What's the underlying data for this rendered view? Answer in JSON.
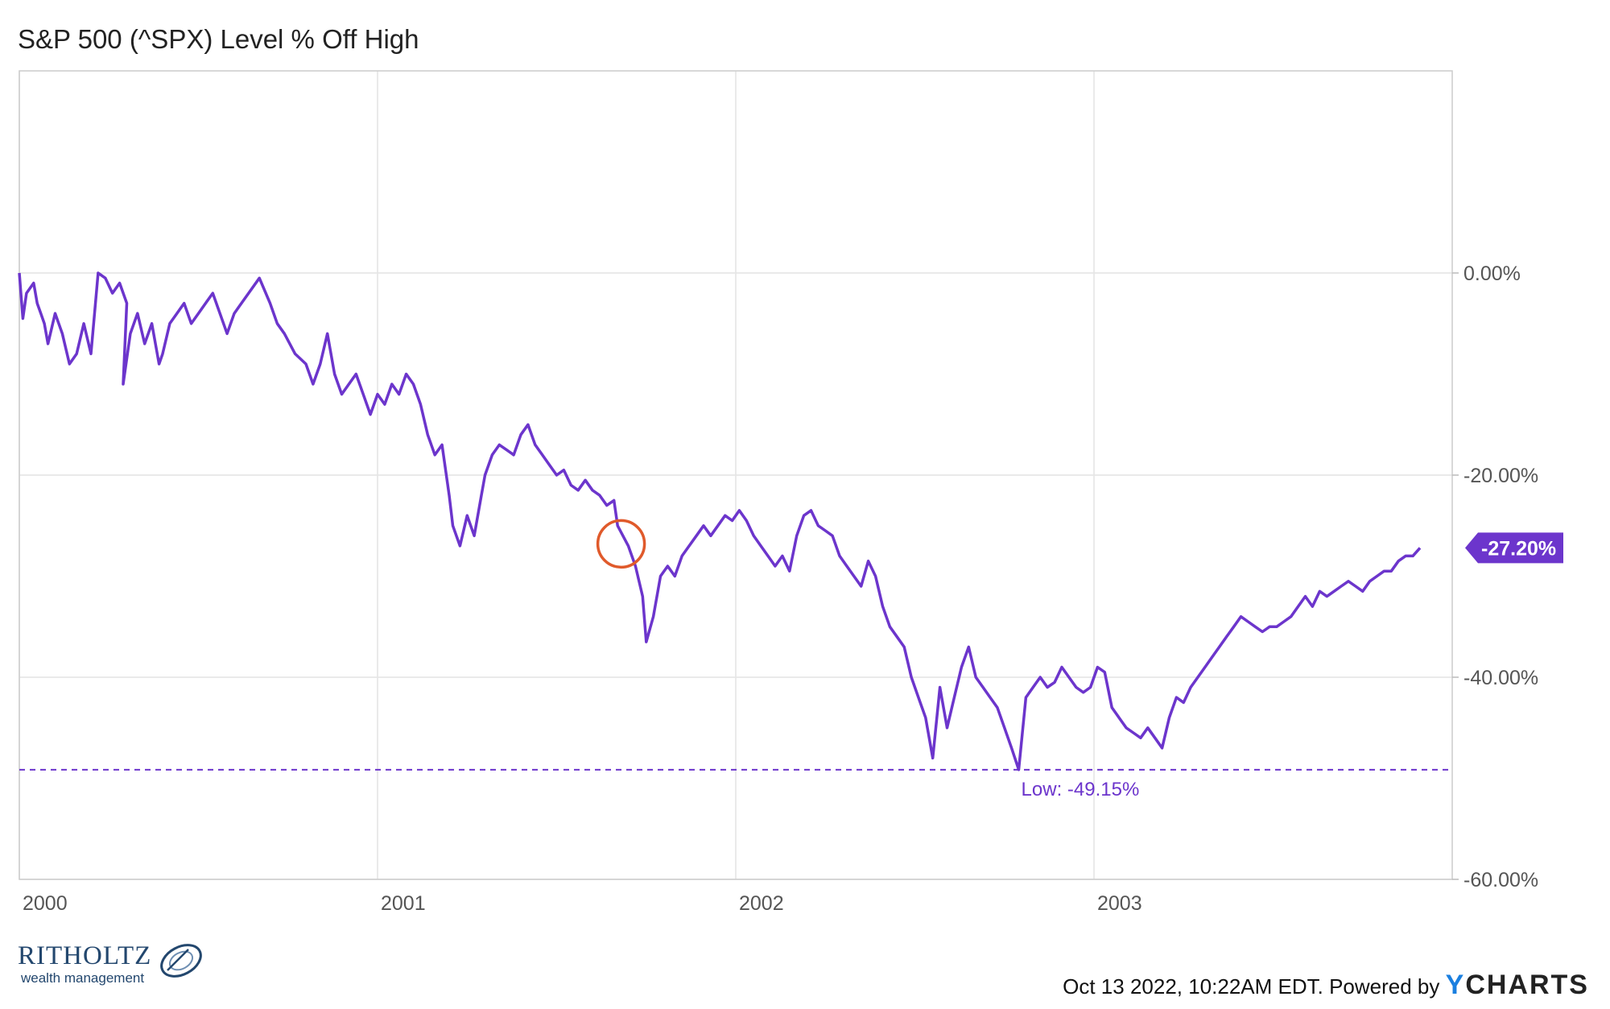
{
  "title": "S&P 500 (^SPX) Level % Off High",
  "footer": {
    "timestamp": "Oct 13 2022, 10:22AM EDT.",
    "powered_by": "Powered by",
    "brand_y": "Y",
    "brand_rest": "CHARTS"
  },
  "logo": {
    "name": "RITHOLTZ",
    "sub": "wealth management"
  },
  "colors": {
    "line": "#6c35cc",
    "marker": "#e05a2b",
    "grid": "#e4e4e4",
    "axis_text": "#555555",
    "badge_text": "#ffffff"
  },
  "chart_data": {
    "type": "line",
    "title": "S&P 500 (^SPX) Level % Off High",
    "xlabel": "",
    "ylabel": "",
    "x_range": [
      2000.0,
      2004.0
    ],
    "ylim": [
      -60,
      20
    ],
    "grid": true,
    "x_ticks": [
      {
        "value": 2000.0,
        "label": "2000"
      },
      {
        "value": 2001.0,
        "label": "2001"
      },
      {
        "value": 2002.0,
        "label": "2002"
      },
      {
        "value": 2003.0,
        "label": "2003"
      }
    ],
    "y_ticks": [
      {
        "value": 0,
        "label": "0.00%"
      },
      {
        "value": -20,
        "label": "-20.00%"
      },
      {
        "value": -40,
        "label": "-40.00%"
      },
      {
        "value": -60,
        "label": "-60.00%"
      }
    ],
    "series": [
      {
        "points": [
          [
            2000.0,
            0
          ],
          [
            2000.01,
            -4.5
          ],
          [
            2000.02,
            -2
          ],
          [
            2000.04,
            -1
          ],
          [
            2000.05,
            -3
          ],
          [
            2000.06,
            -4
          ],
          [
            2000.07,
            -5
          ],
          [
            2000.08,
            -7
          ],
          [
            2000.1,
            -4
          ],
          [
            2000.12,
            -6
          ],
          [
            2000.14,
            -9
          ],
          [
            2000.16,
            -8
          ],
          [
            2000.18,
            -5
          ],
          [
            2000.2,
            -8
          ],
          [
            2000.22,
            0
          ],
          [
            2000.24,
            -0.5
          ],
          [
            2000.26,
            -2
          ],
          [
            2000.28,
            -1
          ],
          [
            2000.3,
            -3
          ],
          [
            2000.29,
            -11
          ],
          [
            2000.31,
            -6
          ],
          [
            2000.33,
            -4
          ],
          [
            2000.35,
            -7
          ],
          [
            2000.37,
            -5
          ],
          [
            2000.39,
            -9
          ],
          [
            2000.4,
            -8
          ],
          [
            2000.42,
            -5
          ],
          [
            2000.44,
            -4
          ],
          [
            2000.46,
            -3
          ],
          [
            2000.48,
            -5
          ],
          [
            2000.5,
            -4
          ],
          [
            2000.52,
            -3
          ],
          [
            2000.54,
            -2
          ],
          [
            2000.56,
            -4
          ],
          [
            2000.58,
            -6
          ],
          [
            2000.6,
            -4
          ],
          [
            2000.62,
            -3
          ],
          [
            2000.64,
            -2
          ],
          [
            2000.67,
            -0.5
          ],
          [
            2000.7,
            -3
          ],
          [
            2000.72,
            -5
          ],
          [
            2000.74,
            -6
          ],
          [
            2000.77,
            -8
          ],
          [
            2000.8,
            -9
          ],
          [
            2000.82,
            -11
          ],
          [
            2000.84,
            -9
          ],
          [
            2000.86,
            -6
          ],
          [
            2000.88,
            -10
          ],
          [
            2000.9,
            -12
          ],
          [
            2000.92,
            -11
          ],
          [
            2000.94,
            -10
          ],
          [
            2000.96,
            -12
          ],
          [
            2000.98,
            -14
          ],
          [
            2001.0,
            -12
          ],
          [
            2001.02,
            -13
          ],
          [
            2001.04,
            -11
          ],
          [
            2001.06,
            -12
          ],
          [
            2001.08,
            -10
          ],
          [
            2001.1,
            -11
          ],
          [
            2001.12,
            -13
          ],
          [
            2001.14,
            -16
          ],
          [
            2001.16,
            -18
          ],
          [
            2001.18,
            -17
          ],
          [
            2001.2,
            -22
          ],
          [
            2001.21,
            -25
          ],
          [
            2001.23,
            -27
          ],
          [
            2001.25,
            -24
          ],
          [
            2001.27,
            -26
          ],
          [
            2001.29,
            -22
          ],
          [
            2001.3,
            -20
          ],
          [
            2001.32,
            -18
          ],
          [
            2001.34,
            -17
          ],
          [
            2001.36,
            -17.5
          ],
          [
            2001.38,
            -18
          ],
          [
            2001.4,
            -16
          ],
          [
            2001.42,
            -15
          ],
          [
            2001.44,
            -17
          ],
          [
            2001.46,
            -18
          ],
          [
            2001.48,
            -19
          ],
          [
            2001.5,
            -20
          ],
          [
            2001.52,
            -19.5
          ],
          [
            2001.54,
            -21
          ],
          [
            2001.56,
            -21.5
          ],
          [
            2001.58,
            -20.5
          ],
          [
            2001.6,
            -21.5
          ],
          [
            2001.62,
            -22
          ],
          [
            2001.64,
            -23
          ],
          [
            2001.66,
            -22.5
          ],
          [
            2001.67,
            -25
          ],
          [
            2001.7,
            -27
          ],
          [
            2001.72,
            -29
          ],
          [
            2001.74,
            -32
          ],
          [
            2001.75,
            -36.5
          ],
          [
            2001.77,
            -34
          ],
          [
            2001.79,
            -30
          ],
          [
            2001.81,
            -29
          ],
          [
            2001.83,
            -30
          ],
          [
            2001.85,
            -28
          ],
          [
            2001.87,
            -27
          ],
          [
            2001.89,
            -26
          ],
          [
            2001.91,
            -25
          ],
          [
            2001.93,
            -26
          ],
          [
            2001.95,
            -25
          ],
          [
            2001.97,
            -24
          ],
          [
            2001.99,
            -24.5
          ],
          [
            2002.01,
            -23.5
          ],
          [
            2002.03,
            -24.5
          ],
          [
            2002.05,
            -26
          ],
          [
            2002.07,
            -27
          ],
          [
            2002.09,
            -28
          ],
          [
            2002.11,
            -29
          ],
          [
            2002.13,
            -28
          ],
          [
            2002.15,
            -29.5
          ],
          [
            2002.17,
            -26
          ],
          [
            2002.19,
            -24
          ],
          [
            2002.21,
            -23.5
          ],
          [
            2002.23,
            -25
          ],
          [
            2002.25,
            -25.5
          ],
          [
            2002.27,
            -26
          ],
          [
            2002.29,
            -28
          ],
          [
            2002.31,
            -29
          ],
          [
            2002.33,
            -30
          ],
          [
            2002.35,
            -31
          ],
          [
            2002.37,
            -28.5
          ],
          [
            2002.39,
            -30
          ],
          [
            2002.41,
            -33
          ],
          [
            2002.43,
            -35
          ],
          [
            2002.45,
            -36
          ],
          [
            2002.47,
            -37
          ],
          [
            2002.49,
            -40
          ],
          [
            2002.51,
            -42
          ],
          [
            2002.53,
            -44
          ],
          [
            2002.55,
            -48
          ],
          [
            2002.57,
            -41
          ],
          [
            2002.59,
            -45
          ],
          [
            2002.61,
            -42
          ],
          [
            2002.63,
            -39
          ],
          [
            2002.65,
            -37
          ],
          [
            2002.67,
            -40
          ],
          [
            2002.69,
            -41
          ],
          [
            2002.71,
            -42
          ],
          [
            2002.73,
            -43
          ],
          [
            2002.75,
            -45
          ],
          [
            2002.77,
            -47
          ],
          [
            2002.79,
            -49.15
          ],
          [
            2002.81,
            -42
          ],
          [
            2002.83,
            -41
          ],
          [
            2002.85,
            -40
          ],
          [
            2002.87,
            -41
          ],
          [
            2002.89,
            -40.5
          ],
          [
            2002.91,
            -39
          ],
          [
            2002.93,
            -40
          ],
          [
            2002.95,
            -41
          ],
          [
            2002.97,
            -41.5
          ],
          [
            2002.99,
            -41
          ],
          [
            2003.01,
            -39
          ],
          [
            2003.03,
            -39.5
          ],
          [
            2003.05,
            -43
          ],
          [
            2003.07,
            -44
          ],
          [
            2003.09,
            -45
          ],
          [
            2003.11,
            -45.5
          ],
          [
            2003.13,
            -46
          ],
          [
            2003.15,
            -45
          ],
          [
            2003.17,
            -46
          ],
          [
            2003.19,
            -47
          ],
          [
            2003.21,
            -44
          ],
          [
            2003.23,
            -42
          ],
          [
            2003.25,
            -42.5
          ],
          [
            2003.27,
            -41
          ],
          [
            2003.29,
            -40
          ],
          [
            2003.31,
            -39
          ],
          [
            2003.33,
            -38
          ],
          [
            2003.35,
            -37
          ],
          [
            2003.37,
            -36
          ],
          [
            2003.39,
            -35
          ],
          [
            2003.41,
            -34
          ],
          [
            2003.43,
            -34.5
          ],
          [
            2003.45,
            -35
          ],
          [
            2003.47,
            -35.5
          ],
          [
            2003.49,
            -35
          ],
          [
            2003.51,
            -35
          ],
          [
            2003.53,
            -34.5
          ],
          [
            2003.55,
            -34
          ],
          [
            2003.57,
            -33
          ],
          [
            2003.59,
            -32
          ],
          [
            2003.61,
            -33
          ],
          [
            2003.63,
            -31.5
          ],
          [
            2003.65,
            -32
          ],
          [
            2003.67,
            -31.5
          ],
          [
            2003.69,
            -31
          ],
          [
            2003.71,
            -30.5
          ],
          [
            2003.73,
            -31
          ],
          [
            2003.75,
            -31.5
          ],
          [
            2003.77,
            -30.5
          ],
          [
            2003.79,
            -30
          ],
          [
            2003.81,
            -29.5
          ],
          [
            2003.83,
            -29.5
          ],
          [
            2003.85,
            -28.5
          ],
          [
            2003.87,
            -28
          ],
          [
            2003.89,
            -28
          ],
          [
            2003.91,
            -27.2
          ]
        ]
      }
    ],
    "reference_line": {
      "y": -49.15,
      "label": "Low: -49.15%"
    },
    "last_value": {
      "y": -27.2,
      "label": "-27.20%"
    },
    "highlight_circle": {
      "x": 2001.68,
      "y": -26.8
    }
  }
}
